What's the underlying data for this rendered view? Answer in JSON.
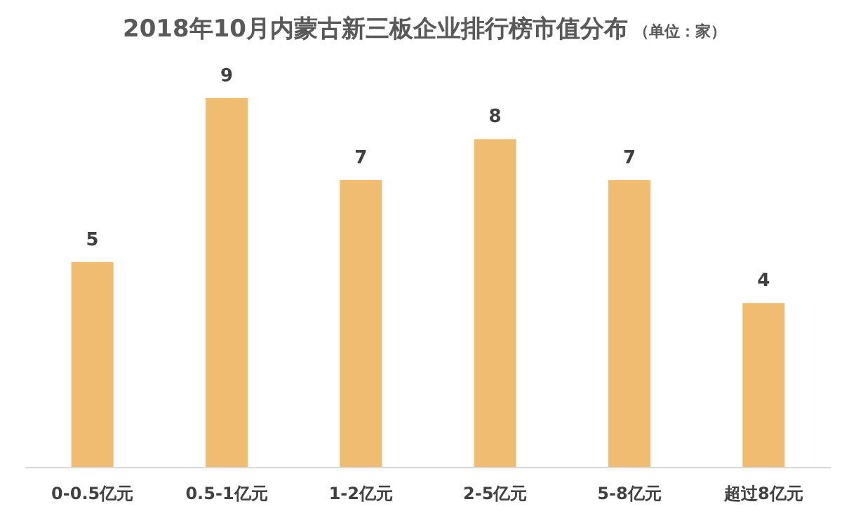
{
  "chart_data": {
    "type": "bar",
    "title": "2018年10月内蒙古新三板企业排行榜市值分布",
    "subtitle": "（单位：家）",
    "categories": [
      "0-0.5亿元",
      "0.5-1亿元",
      "1-2亿元",
      "2-5亿元",
      "5-8亿元",
      "超过8亿元"
    ],
    "values": [
      5,
      9,
      7,
      8,
      7,
      4
    ],
    "color": "#f0bc72",
    "data_labels": true
  }
}
